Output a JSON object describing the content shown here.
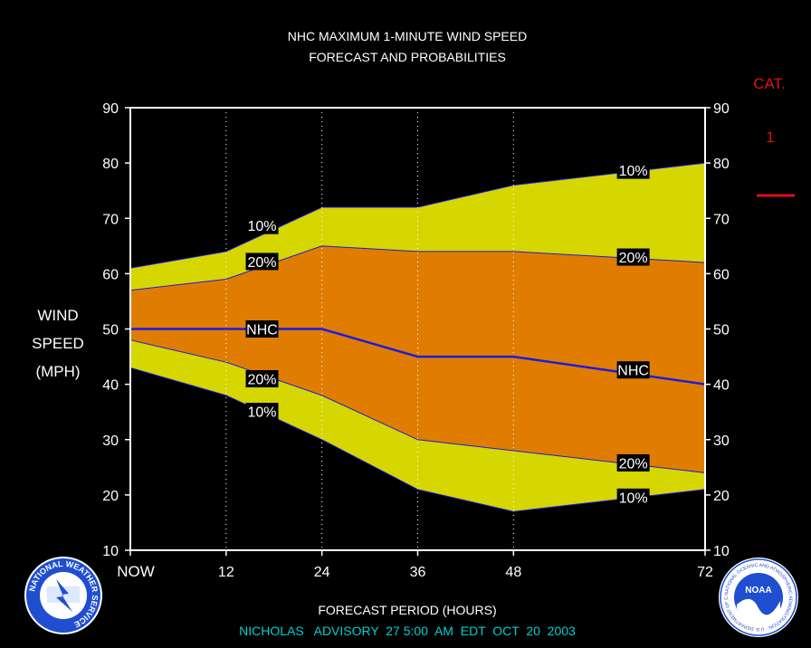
{
  "chart_data": {
    "type": "area",
    "title": "NHC MAXIMUM 1-MINUTE WIND SPEED",
    "subtitle": "FORECAST AND PROBABILITIES",
    "ylabel_lines": [
      "WIND",
      "SPEED",
      "(MPH)"
    ],
    "xlabel": "FORECAST PERIOD (HOURS)",
    "advisory": "NICHOLAS   ADVISORY  27 5:00  AM  EDT  OCT  20  2003",
    "ylim": [
      10,
      90
    ],
    "yticks": [
      10,
      20,
      30,
      40,
      50,
      60,
      70,
      80,
      90
    ],
    "xlim": [
      0,
      72
    ],
    "xticks": [
      {
        "value": 0,
        "label": "NOW"
      },
      {
        "value": 12,
        "label": "12"
      },
      {
        "value": 24,
        "label": "24"
      },
      {
        "value": 36,
        "label": "36"
      },
      {
        "value": 48,
        "label": "48"
      },
      {
        "value": 72,
        "label": "72"
      }
    ],
    "grid_x": [
      12,
      24,
      36,
      48
    ],
    "x": [
      0,
      12,
      24,
      36,
      48,
      72
    ],
    "series": [
      {
        "name": "10%",
        "role": "upper",
        "values": [
          61,
          64,
          72,
          72,
          76,
          80
        ]
      },
      {
        "name": "20%",
        "role": "upper",
        "values": [
          57,
          59,
          65,
          64,
          64,
          62
        ]
      },
      {
        "name": "NHC",
        "role": "forecast",
        "values": [
          50,
          50,
          50,
          45,
          45,
          40
        ]
      },
      {
        "name": "20%",
        "role": "lower",
        "values": [
          48,
          44,
          38,
          30,
          28,
          24
        ]
      },
      {
        "name": "10%",
        "role": "lower",
        "values": [
          43,
          38,
          30,
          21,
          17,
          21
        ]
      }
    ],
    "band_labels": [
      {
        "text": "10%",
        "x": 16.5,
        "y": 68.7
      },
      {
        "text": "20%",
        "x": 16.5,
        "y": 62.2
      },
      {
        "text": "NHC",
        "x": 16.5,
        "y": 50
      },
      {
        "text": "20%",
        "x": 16.5,
        "y": 41.0
      },
      {
        "text": "10%",
        "x": 16.5,
        "y": 35.1
      },
      {
        "text": "10%",
        "x": 63,
        "y": 78.7
      },
      {
        "text": "20%",
        "x": 63,
        "y": 63.0
      },
      {
        "text": "NHC",
        "x": 63,
        "y": 42.6
      },
      {
        "text": "20%",
        "x": 63,
        "y": 25.8
      },
      {
        "text": "10%",
        "x": 63,
        "y": 19.6
      }
    ],
    "category": {
      "label": "CAT.",
      "value": "1"
    },
    "colors": {
      "outer_band": "#d6d600",
      "inner_band": "#e07d00",
      "forecast_line": "#1c1ce0",
      "category": "#e01010",
      "advisory": "#00d0d0",
      "background": "#000000"
    }
  },
  "logos": {
    "nws": "NATIONAL WEATHER SERVICE",
    "noaa": "NOAA",
    "noaa_ring": "NATIONAL OCEANIC AND ATMOSPHERIC ADMINISTRATION · U.S. DEPARTMENT OF COMMERCE"
  }
}
